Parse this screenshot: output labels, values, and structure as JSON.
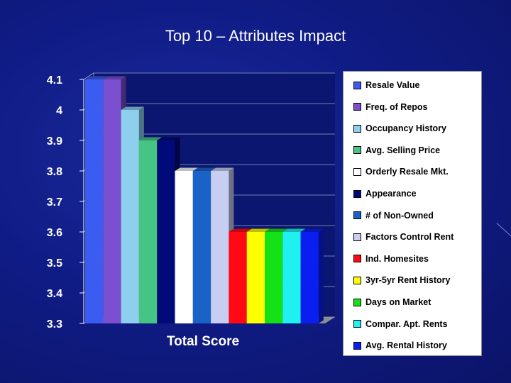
{
  "slide": {
    "title": "Top 10 – Attributes Impact"
  },
  "colors": {
    "background": "#101c86",
    "plot_wall": "#0b1670",
    "grid": "#9aa0c8",
    "text": "#ffffff"
  },
  "chart_data": {
    "type": "bar",
    "title": "Top 10 – Attributes Impact",
    "xlabel": "Total Score",
    "ylabel": "",
    "categories": [
      "Total Score"
    ],
    "ylim": [
      3.3,
      4.1
    ],
    "yticks": [
      "3.3",
      "3.4",
      "3.5",
      "3.6",
      "3.7",
      "3.8",
      "3.9",
      "4",
      "4.1"
    ],
    "grid": true,
    "three_d": true,
    "legend_position": "right",
    "series": [
      {
        "name": "Resale Value",
        "values": [
          4.1
        ],
        "color": "#3a5cf0"
      },
      {
        "name": "Freq. of Repos",
        "values": [
          4.1
        ],
        "color": "#7a4fd0"
      },
      {
        "name": "Occupancy History",
        "values": [
          4.0
        ],
        "color": "#8ecfee"
      },
      {
        "name": "Avg. Selling Price",
        "values": [
          3.9
        ],
        "color": "#46c484"
      },
      {
        "name": "Orderly Resale Mkt.",
        "values": [
          3.8
        ],
        "color": "#ffffff"
      },
      {
        "name": "Appearance",
        "values": [
          3.9
        ],
        "color": "#000a78"
      },
      {
        "name": "# of Non-Owned",
        "values": [
          3.8
        ],
        "color": "#1b62c6"
      },
      {
        "name": "Factors Control Rent",
        "values": [
          3.8
        ],
        "color": "#c8cdf2"
      },
      {
        "name": "Ind. Homesites",
        "values": [
          3.6
        ],
        "color": "#ff0a14"
      },
      {
        "name": "3yr-5yr Rent History",
        "values": [
          3.6
        ],
        "color": "#ffff00"
      },
      {
        "name": "Days on Market",
        "values": [
          3.6
        ],
        "color": "#16e016"
      },
      {
        "name": "Compar. Apt. Rents",
        "values": [
          3.6
        ],
        "color": "#1ff0f0"
      },
      {
        "name": "Avg. Rental History",
        "values": [
          3.6
        ],
        "color": "#0a1ef0"
      }
    ],
    "bar_order": [
      0,
      1,
      2,
      3,
      5,
      4,
      6,
      7,
      8,
      9,
      10,
      11,
      12
    ]
  }
}
